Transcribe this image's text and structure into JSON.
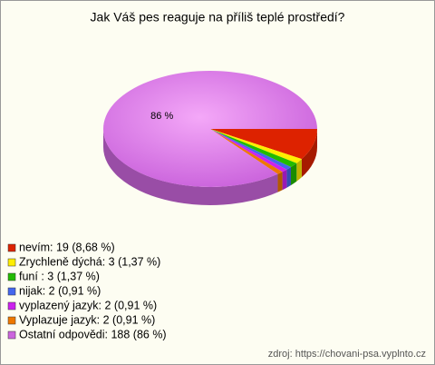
{
  "chart_data": {
    "type": "pie3d",
    "title": "Jak Váš pes reaguje na příliš teplé prostředí?",
    "categories": [
      "nevím",
      "Zrychleně dýchá",
      "funí",
      "nijak",
      "vyplazený jazyk",
      "Vyplazuje jazyk",
      "Ostatní odpovědi"
    ],
    "values": [
      8.68,
      1.37,
      1.37,
      0.91,
      0.91,
      0.91,
      86
    ],
    "value_labels": [
      null,
      null,
      null,
      null,
      null,
      null,
      "86 %"
    ],
    "legend": [
      "nevím: 19 (8,68 %)",
      "Zrychleně dýchá: 3 (1,37 %)",
      "funí : 3 (1,37 %)",
      "nijak: 2 (0,91 %)",
      "vyplazený jazyk: 2 (0,91 %)",
      "Vyplazuje jazyk: 2 (0,91 %)",
      "Ostatní odpovědi: 188 (86 %)"
    ],
    "colors": [
      "#dd2200",
      "#ffee00",
      "#22bb00",
      "#4466ee",
      "#cc22ee",
      "#ee7700",
      "#cc66dd"
    ],
    "source": "zdroj: https://chovani-psa.vyplnto.cz"
  }
}
